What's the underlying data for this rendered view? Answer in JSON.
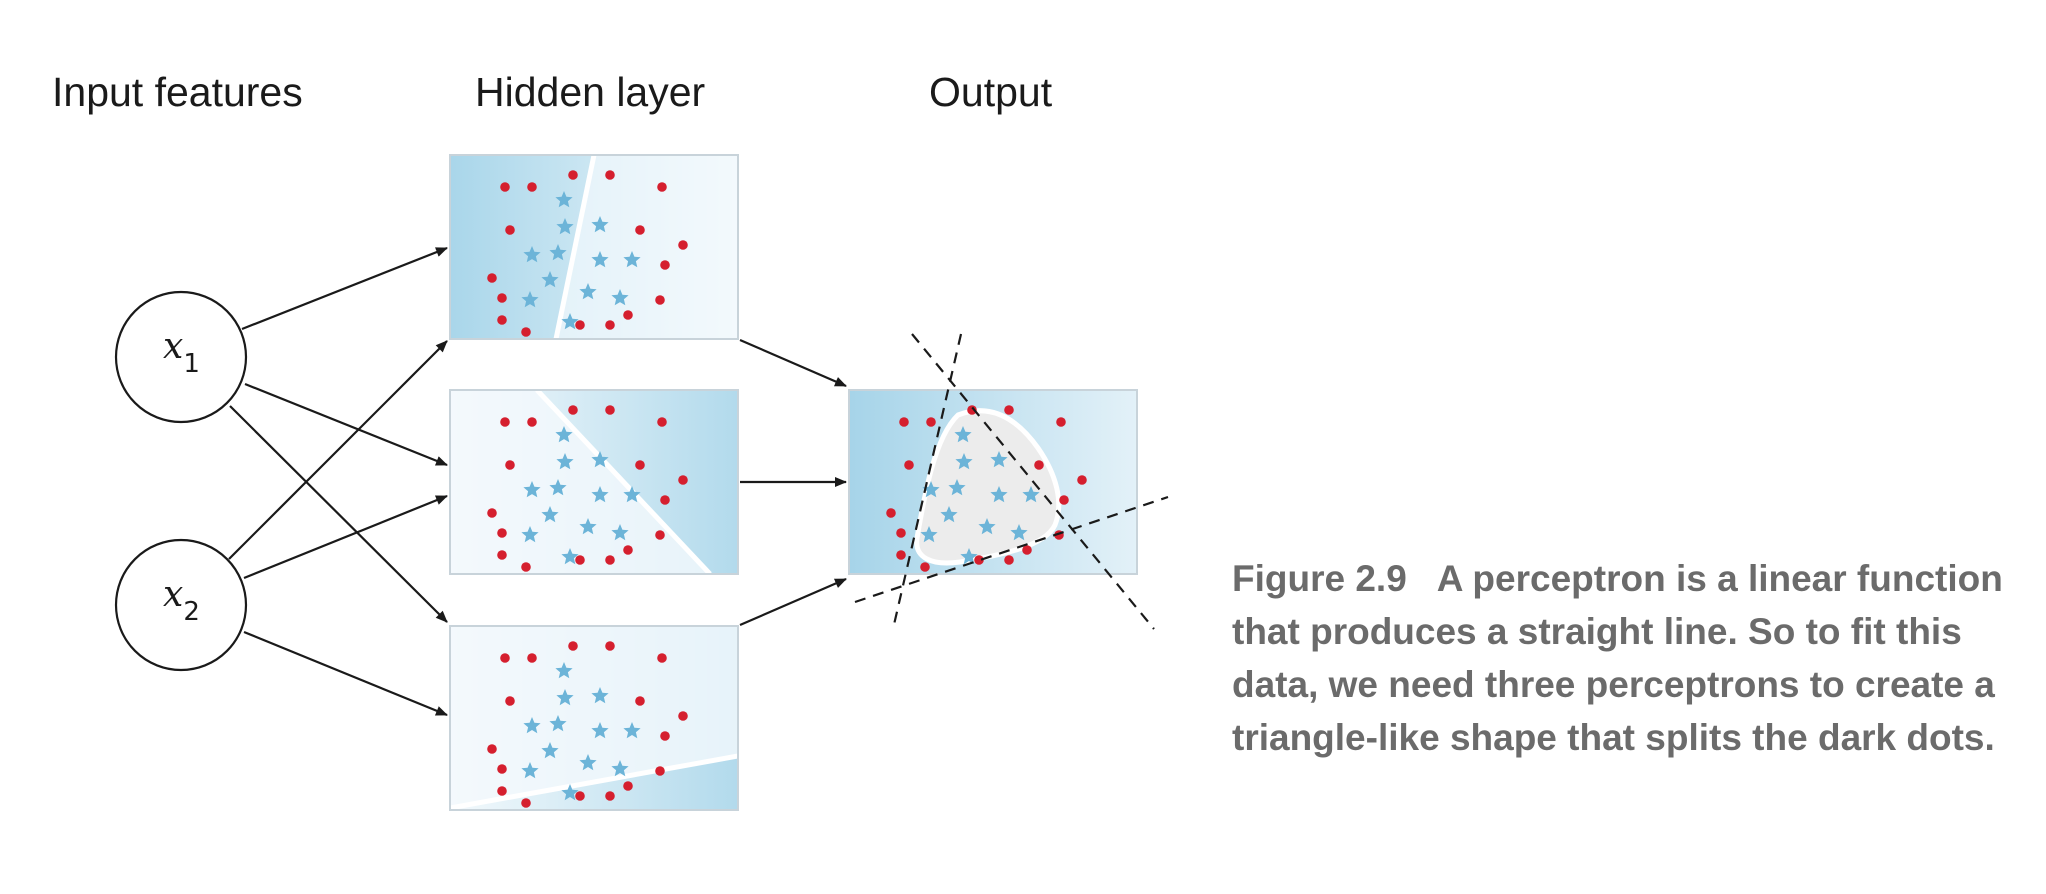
{
  "headers": {
    "input": "Input features",
    "hidden": "Hidden layer",
    "output": "Output"
  },
  "nodes": [
    {
      "symbol": "x",
      "subscript": "1"
    },
    {
      "symbol": "x",
      "subscript": "2"
    }
  ],
  "caption": {
    "figure_number": "Figure 2.9",
    "text": "A perceptron is a linear function that produces a straight line. So to fit this data, we need three perceptrons to create a triangle-like shape that splits the dark dots."
  },
  "colors": {
    "dot": "#d51f2e",
    "star": "#6cb4d8",
    "panel_dark": "#a9d6ea",
    "panel_light": "#f1f8fc",
    "arrow": "#1a1a1a"
  },
  "icons": {
    "dot": "red-dot-icon",
    "star": "blue-star-icon"
  }
}
